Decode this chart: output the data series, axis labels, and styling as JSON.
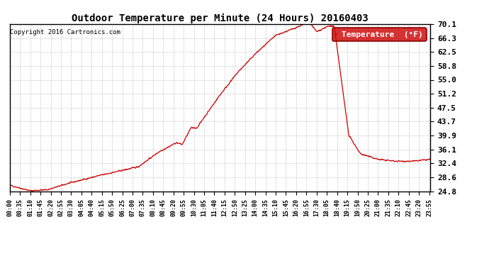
{
  "title": "Outdoor Temperature per Minute (24 Hours) 20160403",
  "copyright_text": "Copyright 2016 Cartronics.com",
  "legend_label": "Temperature  (°F)",
  "legend_bg": "#cc0000",
  "legend_text_color": "#ffffff",
  "line_color": "#cc0000",
  "bg_color": "#ffffff",
  "grid_color": "#bbbbbb",
  "yticks": [
    24.8,
    28.6,
    32.4,
    36.1,
    39.9,
    43.7,
    47.5,
    51.2,
    55.0,
    58.8,
    62.5,
    66.3,
    70.1
  ],
  "ymin": 24.8,
  "ymax": 70.1,
  "xtick_interval": 35,
  "total_minutes": 1440
}
